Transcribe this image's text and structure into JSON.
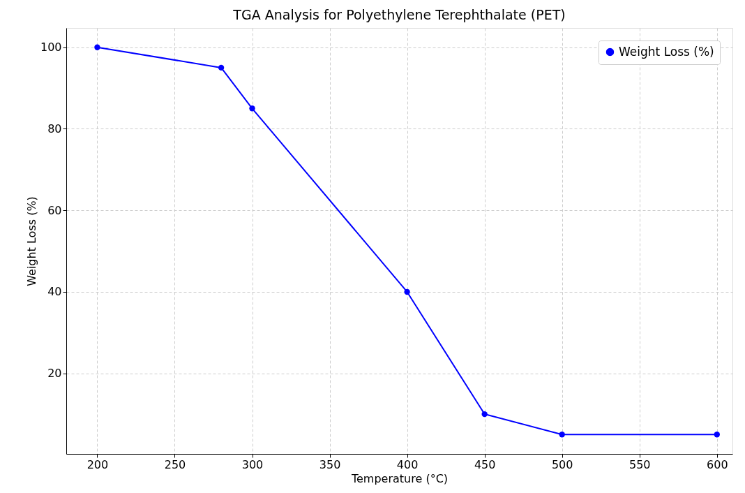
{
  "chart_data": {
    "type": "line",
    "title": "TGA Analysis for Polyethylene Terephthalate (PET)",
    "xlabel": "Temperature (°C)",
    "ylabel": "Weight Loss (%)",
    "x": [
      200,
      280,
      300,
      400,
      450,
      500,
      600
    ],
    "series": [
      {
        "name": "Weight Loss (%)",
        "color": "#0000ff",
        "values": [
          100,
          95,
          85,
          40,
          10,
          5,
          5
        ]
      }
    ],
    "xlim": [
      180,
      610
    ],
    "xticks": [
      200,
      250,
      300,
      350,
      400,
      450,
      500,
      550,
      600
    ],
    "ylim": [
      0.25,
      104.75
    ],
    "yticks": [
      20,
      40,
      60,
      80,
      100
    ],
    "grid": true,
    "legend": "top right",
    "marker": "circle",
    "line_style": "solid"
  }
}
